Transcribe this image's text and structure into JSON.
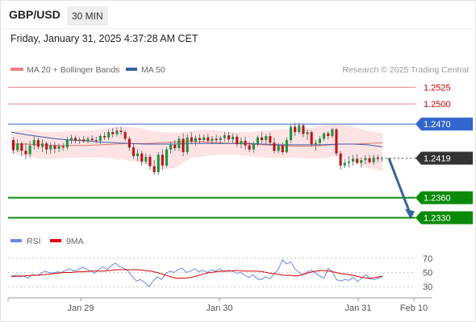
{
  "header": {
    "symbol": "GBP/USD",
    "interval": "30 MIN",
    "datetime": "Friday, January 31, 2025 4:37:28 AM CET"
  },
  "legend": {
    "ma20_label": "MA 20 + Bollinger Bands",
    "ma50_label": "MA 50",
    "source": "Research © 2025 Trading Central",
    "rsi_label": "RSI",
    "rsi_ma_label": "9MA"
  },
  "colors": {
    "resistance": "#f08080",
    "resistance_text": "#cc0000",
    "pivot": "#3366cc",
    "support": "#0a8a0a",
    "last_price": "#333333",
    "bullish_candle": "#1a9641",
    "bearish_candle": "#c0121c",
    "bollinger_fill": "#fde0e0",
    "ma20": "#e07575",
    "ma50": "#3a5fa8",
    "arrow": "#336699",
    "rsi": "#6a8ae0",
    "rsi_ma": "#dd0000"
  },
  "chart_data": [
    {
      "type": "candlestick",
      "title": "GBP/USD",
      "ylim": [
        1.2315,
        1.2535
      ],
      "x_tick_labels": [
        "Jan 29",
        "Jan 30",
        "Jan 31",
        "Feb 10"
      ],
      "levels": [
        {
          "label": "1.2525",
          "value": 1.2525,
          "kind": "resistance"
        },
        {
          "label": "1.2500",
          "value": 1.25,
          "kind": "resistance"
        },
        {
          "label": "1.2470",
          "value": 1.247,
          "kind": "pivot"
        },
        {
          "label": "1.2419",
          "value": 1.2419,
          "kind": "last"
        },
        {
          "label": "1.2360",
          "value": 1.236,
          "kind": "support"
        },
        {
          "label": "1.2330",
          "value": 1.233,
          "kind": "support"
        }
      ],
      "ohlc": [
        [
          1.2446,
          1.245,
          1.2426,
          1.2431
        ],
        [
          1.2431,
          1.2447,
          1.2428,
          1.2441
        ],
        [
          1.2441,
          1.2444,
          1.2422,
          1.243
        ],
        [
          1.243,
          1.2442,
          1.2418,
          1.2425
        ],
        [
          1.2425,
          1.2445,
          1.242,
          1.2438
        ],
        [
          1.2438,
          1.2452,
          1.2432,
          1.2446
        ],
        [
          1.2446,
          1.245,
          1.2432,
          1.2436
        ],
        [
          1.2436,
          1.2447,
          1.2428,
          1.2441
        ],
        [
          1.2441,
          1.2444,
          1.2425,
          1.2432
        ],
        [
          1.2432,
          1.2442,
          1.2426,
          1.2438
        ],
        [
          1.2438,
          1.2443,
          1.2427,
          1.2433
        ],
        [
          1.2433,
          1.2441,
          1.2428,
          1.2437
        ],
        [
          1.2437,
          1.2442,
          1.243,
          1.2435
        ],
        [
          1.2435,
          1.2451,
          1.2432,
          1.2446
        ],
        [
          1.2446,
          1.2454,
          1.244,
          1.2449
        ],
        [
          1.2449,
          1.2453,
          1.2441,
          1.2445
        ],
        [
          1.2445,
          1.245,
          1.244,
          1.2447
        ],
        [
          1.2447,
          1.2452,
          1.2442,
          1.2444
        ],
        [
          1.2444,
          1.2451,
          1.2441,
          1.2448
        ],
        [
          1.2448,
          1.2453,
          1.2444,
          1.2446
        ],
        [
          1.2446,
          1.2451,
          1.2441,
          1.2445
        ],
        [
          1.2445,
          1.2455,
          1.244,
          1.2452
        ],
        [
          1.2452,
          1.2458,
          1.2446,
          1.245
        ],
        [
          1.245,
          1.2462,
          1.2446,
          1.2458
        ],
        [
          1.2458,
          1.2464,
          1.245,
          1.2455
        ],
        [
          1.2455,
          1.2465,
          1.2451,
          1.246
        ],
        [
          1.246,
          1.2466,
          1.2454,
          1.2458
        ],
        [
          1.2458,
          1.2461,
          1.2444,
          1.2448
        ],
        [
          1.2448,
          1.2452,
          1.243,
          1.2435
        ],
        [
          1.2435,
          1.2441,
          1.2418,
          1.2422
        ],
        [
          1.2422,
          1.2432,
          1.2415,
          1.2426
        ],
        [
          1.2426,
          1.243,
          1.2408,
          1.2414
        ],
        [
          1.2414,
          1.2426,
          1.241,
          1.2421
        ],
        [
          1.2421,
          1.2425,
          1.2402,
          1.2407
        ],
        [
          1.2407,
          1.2416,
          1.2394,
          1.2398
        ],
        [
          1.2398,
          1.2428,
          1.2394,
          1.2424
        ],
        [
          1.2424,
          1.2432,
          1.2402,
          1.2408
        ],
        [
          1.2408,
          1.2436,
          1.2405,
          1.2432
        ],
        [
          1.2432,
          1.2444,
          1.2426,
          1.2439
        ],
        [
          1.2439,
          1.2446,
          1.243,
          1.2434
        ],
        [
          1.2434,
          1.2452,
          1.243,
          1.2448
        ],
        [
          1.2448,
          1.2456,
          1.2422,
          1.2428
        ],
        [
          1.2428,
          1.2455,
          1.2424,
          1.245
        ],
        [
          1.245,
          1.2458,
          1.244,
          1.2444
        ],
        [
          1.2444,
          1.2453,
          1.2438,
          1.2449
        ],
        [
          1.2449,
          1.2455,
          1.2441,
          1.2446
        ],
        [
          1.2446,
          1.2454,
          1.2443,
          1.245
        ],
        [
          1.245,
          1.2456,
          1.2442,
          1.2445
        ],
        [
          1.2445,
          1.2452,
          1.244,
          1.2448
        ],
        [
          1.2448,
          1.2454,
          1.2442,
          1.2446
        ],
        [
          1.2446,
          1.2452,
          1.244,
          1.2449
        ],
        [
          1.2449,
          1.2458,
          1.2444,
          1.2453
        ],
        [
          1.2453,
          1.2458,
          1.2443,
          1.2447
        ],
        [
          1.2447,
          1.2456,
          1.2442,
          1.2451
        ],
        [
          1.2451,
          1.2455,
          1.2436,
          1.244
        ],
        [
          1.244,
          1.245,
          1.2434,
          1.2445
        ],
        [
          1.2445,
          1.2451,
          1.2432,
          1.2438
        ],
        [
          1.2438,
          1.2443,
          1.2428,
          1.2432
        ],
        [
          1.2432,
          1.2444,
          1.2427,
          1.2441
        ],
        [
          1.2441,
          1.2453,
          1.2437,
          1.245
        ],
        [
          1.245,
          1.2458,
          1.2442,
          1.2446
        ],
        [
          1.2446,
          1.2455,
          1.244,
          1.2452
        ],
        [
          1.2452,
          1.2457,
          1.2438,
          1.2442
        ],
        [
          1.2442,
          1.245,
          1.2426,
          1.243
        ],
        [
          1.243,
          1.2442,
          1.2426,
          1.2438
        ],
        [
          1.2438,
          1.2443,
          1.2424,
          1.2428
        ],
        [
          1.2428,
          1.245,
          1.2426,
          1.2446
        ],
        [
          1.2446,
          1.247,
          1.2442,
          1.2466
        ],
        [
          1.2466,
          1.2472,
          1.2452,
          1.2458
        ],
        [
          1.2458,
          1.2472,
          1.2455,
          1.2468
        ],
        [
          1.2468,
          1.2471,
          1.245,
          1.2455
        ],
        [
          1.2455,
          1.2462,
          1.2446,
          1.2458
        ],
        [
          1.2458,
          1.2461,
          1.2436,
          1.244
        ],
        [
          1.244,
          1.2446,
          1.243,
          1.2442
        ],
        [
          1.2442,
          1.2452,
          1.2438,
          1.2448
        ],
        [
          1.2448,
          1.2458,
          1.2445,
          1.2456
        ],
        [
          1.2456,
          1.2459,
          1.2447,
          1.2452
        ],
        [
          1.2452,
          1.2464,
          1.2449,
          1.2462
        ],
        [
          1.2462,
          1.2464,
          1.2422,
          1.2426
        ],
        [
          1.2426,
          1.243,
          1.2402,
          1.2408
        ],
        [
          1.2408,
          1.2418,
          1.2404,
          1.2412
        ],
        [
          1.2412,
          1.2422,
          1.2405,
          1.2414
        ],
        [
          1.2414,
          1.2424,
          1.2408,
          1.2418
        ],
        [
          1.2418,
          1.2425,
          1.241,
          1.2412
        ],
        [
          1.2412,
          1.242,
          1.2405,
          1.2416
        ],
        [
          1.2416,
          1.2423,
          1.241,
          1.2419
        ],
        [
          1.2419,
          1.2424,
          1.2411,
          1.2413
        ],
        [
          1.2413,
          1.2424,
          1.2409,
          1.242
        ],
        [
          1.242,
          1.2424,
          1.2413,
          1.2418
        ],
        [
          1.2418,
          1.2422,
          1.2414,
          1.2419
        ]
      ],
      "ma20": [
        1.244,
        1.244,
        1.2439,
        1.2438,
        1.2438,
        1.2438,
        1.2439,
        1.244,
        1.2441,
        1.2441,
        1.2442,
        1.2443,
        1.2444,
        1.2443,
        1.2442,
        1.2441,
        1.244,
        1.2439,
        1.2438,
        1.2437,
        1.2437,
        1.2438,
        1.244,
        1.244,
        1.2441,
        1.2442
      ],
      "ma50": [
        1.2458,
        1.2454,
        1.2451,
        1.2448,
        1.2446,
        1.2445,
        1.2443,
        1.2442,
        1.2441,
        1.244,
        1.244,
        1.244,
        1.2441,
        1.2441,
        1.2441,
        1.2441,
        1.2441,
        1.244,
        1.2439,
        1.2439,
        1.2439,
        1.2439,
        1.244,
        1.244,
        1.2439,
        1.2436
      ],
      "bollinger_upper": [
        1.2458,
        1.2462,
        1.2458,
        1.2458,
        1.246,
        1.246,
        1.2462,
        1.2466,
        1.2466,
        1.2462,
        1.2458,
        1.2457,
        1.2459,
        1.2462,
        1.246,
        1.2458,
        1.2458,
        1.246,
        1.2462,
        1.2463,
        1.2464,
        1.2468,
        1.247,
        1.2466,
        1.246,
        1.2456
      ],
      "bollinger_lower": [
        1.2426,
        1.2422,
        1.2418,
        1.2418,
        1.242,
        1.242,
        1.242,
        1.2418,
        1.2415,
        1.2411,
        1.2402,
        1.2404,
        1.2418,
        1.2422,
        1.2424,
        1.2424,
        1.2422,
        1.242,
        1.2419,
        1.242,
        1.2418,
        1.2419,
        1.2422,
        1.2415,
        1.2404,
        1.24
      ],
      "forecast_arrow": {
        "from": 1.2419,
        "to": 1.233
      }
    },
    {
      "type": "line",
      "series": [
        {
          "name": "RSI",
          "values": [
            45,
            46,
            44,
            45,
            42,
            47,
            46,
            48,
            52,
            50,
            49,
            51,
            50,
            53,
            55,
            52,
            54,
            57,
            55,
            52,
            49,
            55,
            58,
            54,
            60,
            63,
            58,
            56,
            52,
            44,
            38,
            40,
            36,
            30,
            38,
            44,
            40,
            48,
            52,
            50,
            54,
            56,
            50,
            52,
            55,
            51,
            53,
            50,
            54,
            52,
            55,
            51,
            53,
            52,
            49,
            50,
            46,
            43,
            47,
            41,
            40,
            44,
            41,
            48,
            54,
            68,
            62,
            65,
            55,
            50,
            47,
            51,
            53,
            49,
            45,
            42,
            56,
            51,
            40,
            38,
            40,
            39,
            43,
            37,
            42,
            47,
            41,
            40,
            42,
            44
          ]
        },
        {
          "name": "9MA",
          "values": [
            44,
            45,
            45,
            46,
            46,
            47,
            48,
            49,
            50,
            50,
            51,
            51,
            52,
            52,
            52,
            53,
            54,
            54,
            54,
            54,
            53,
            52,
            50,
            47,
            44,
            42,
            42,
            43,
            45,
            48,
            50,
            51,
            52,
            52,
            53,
            52,
            52,
            52,
            51,
            49,
            48,
            46,
            46,
            45,
            47,
            50,
            52,
            53,
            52,
            50,
            48,
            47,
            45,
            43,
            42,
            43,
            45
          ]
        }
      ],
      "ylim": [
        20,
        80
      ],
      "y_ticks": [
        70,
        50,
        30
      ]
    }
  ]
}
